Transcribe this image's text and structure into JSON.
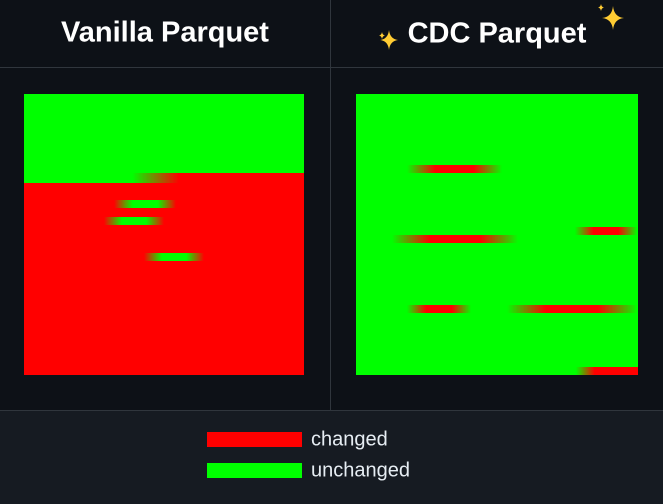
{
  "panels": [
    {
      "title": "Vanilla Parquet"
    },
    {
      "title": "CDC Parquet"
    }
  ],
  "legend": [
    {
      "label": "changed"
    },
    {
      "label": "unchanged"
    }
  ]
}
